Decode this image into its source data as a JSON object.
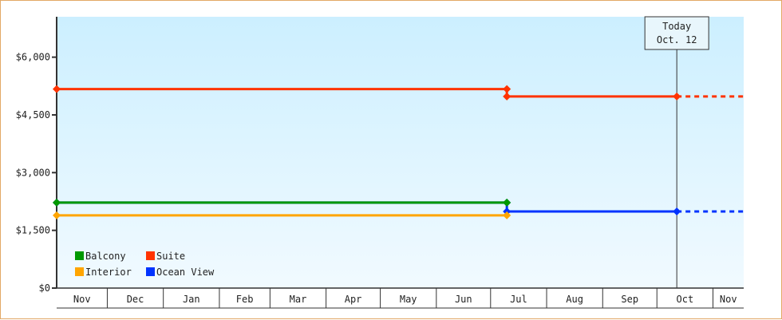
{
  "chart_data": {
    "type": "line",
    "title": "",
    "xlabel": "",
    "ylabel": "",
    "ylim": [
      0,
      7050
    ],
    "yticks": [
      0,
      1500,
      3000,
      4500,
      6000
    ],
    "ytick_labels": [
      "$0",
      "$1,500",
      "$3,000",
      "$4,500",
      "$6,000"
    ],
    "xlim": [
      "Nov 3",
      "Nov 18"
    ],
    "month_labels": [
      "Nov",
      "Dec",
      "Jan",
      "Feb",
      "Mar",
      "Apr",
      "May",
      "Jun",
      "Jul",
      "Aug",
      "Sep",
      "Oct",
      "Nov"
    ],
    "grid": false,
    "legend_position": "bottom-left",
    "today": {
      "label": "Today",
      "date_label": "Oct. 12",
      "date": "Oct 12"
    },
    "series": [
      {
        "name": "Balcony",
        "color": "#009900",
        "points": [
          [
            "Nov 3",
            2220
          ],
          [
            "Jul 10",
            2220
          ]
        ],
        "projected": false
      },
      {
        "name": "Suite",
        "color": "#ff3300",
        "points": [
          [
            "Nov 3",
            5170
          ],
          [
            "Jul 10",
            5170
          ],
          [
            "Jul 10",
            4980
          ],
          [
            "Oct 12",
            4980
          ]
        ],
        "projected": true
      },
      {
        "name": "Interior",
        "color": "#ffa500",
        "points": [
          [
            "Nov 3",
            1890
          ],
          [
            "Jul 10",
            1890
          ]
        ],
        "projected": false
      },
      {
        "name": "Ocean View",
        "color": "#0033ff",
        "points": [
          [
            "Nov 3",
            2220
          ],
          [
            "Jul 10",
            2220
          ],
          [
            "Jul 10",
            1990
          ],
          [
            "Oct 12",
            1990
          ]
        ],
        "projected": true
      }
    ]
  }
}
